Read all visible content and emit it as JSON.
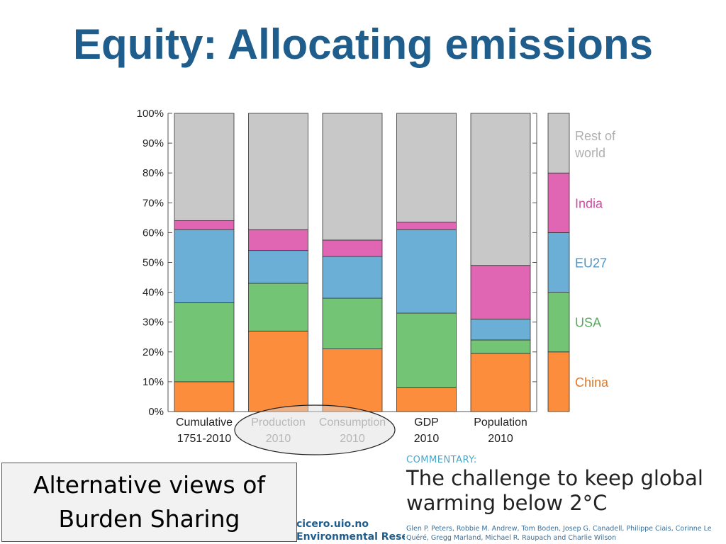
{
  "slide": {
    "title": "Equity: Allocating emissions"
  },
  "callout": {
    "line1": "Alternative views of",
    "line2": "Burden Sharing"
  },
  "commentary": {
    "label": "COMMENTARY:",
    "title": "The challenge to keep global warming below 2°C",
    "authors": "Glen P. Peters, Robbie M. Andrew, Tom Boden, Josep G. Canadell, Philippe Ciais, Corinne Le Quéré, Gregg Marland, Michael R. Raupach and Charlie Wilson"
  },
  "source": {
    "url": "cicero.uio.no",
    "org": "Environmental Research"
  },
  "colors": {
    "china": "#fc8d3d",
    "usa": "#74c476",
    "eu27": "#6baed6",
    "india": "#e066b4",
    "rest": "#c8c8c8",
    "title": "#1f5e8c"
  },
  "chart_data": {
    "type": "bar",
    "stacked": true,
    "ylim": [
      0,
      100
    ],
    "yticks": [
      "0%",
      "10%",
      "20%",
      "30%",
      "40%",
      "50%",
      "60%",
      "70%",
      "80%",
      "90%",
      "100%"
    ],
    "categories": [
      {
        "line1": "Cumulative",
        "line2": "1751-2010",
        "highlighted": false
      },
      {
        "line1": "Production",
        "line2": "2010",
        "highlighted": true
      },
      {
        "line1": "Consumption",
        "line2": "2010",
        "highlighted": true
      },
      {
        "line1": "GDP",
        "line2": "2010",
        "highlighted": false
      },
      {
        "line1": "Population",
        "line2": "2010",
        "highlighted": false
      }
    ],
    "series": [
      {
        "name": "China",
        "color": "#fc8d3d",
        "values": [
          10,
          27,
          21,
          8,
          19.5
        ]
      },
      {
        "name": "USA",
        "color": "#74c476",
        "values": [
          26.5,
          16,
          17,
          25,
          4.5
        ]
      },
      {
        "name": "EU27",
        "color": "#6baed6",
        "values": [
          24.5,
          11,
          14,
          28,
          7
        ]
      },
      {
        "name": "India",
        "color": "#e066b4",
        "values": [
          3,
          7,
          5.5,
          2.5,
          18
        ]
      },
      {
        "name": "Rest of world",
        "color": "#c8c8c8",
        "values": [
          36,
          39,
          42.5,
          36.5,
          51
        ]
      }
    ],
    "legend": [
      {
        "name": "Rest of",
        "name2": "world",
        "color": "#c8c8c8",
        "text_color": "#b0b0b0"
      },
      {
        "name": "India",
        "color": "#e066b4",
        "text_color": "#d04aa0"
      },
      {
        "name": "EU27",
        "color": "#6baed6",
        "text_color": "#4f94c4"
      },
      {
        "name": "USA",
        "color": "#74c476",
        "text_color": "#5aa85e"
      },
      {
        "name": "China",
        "color": "#fc8d3d",
        "text_color": "#e07a2c"
      }
    ]
  }
}
